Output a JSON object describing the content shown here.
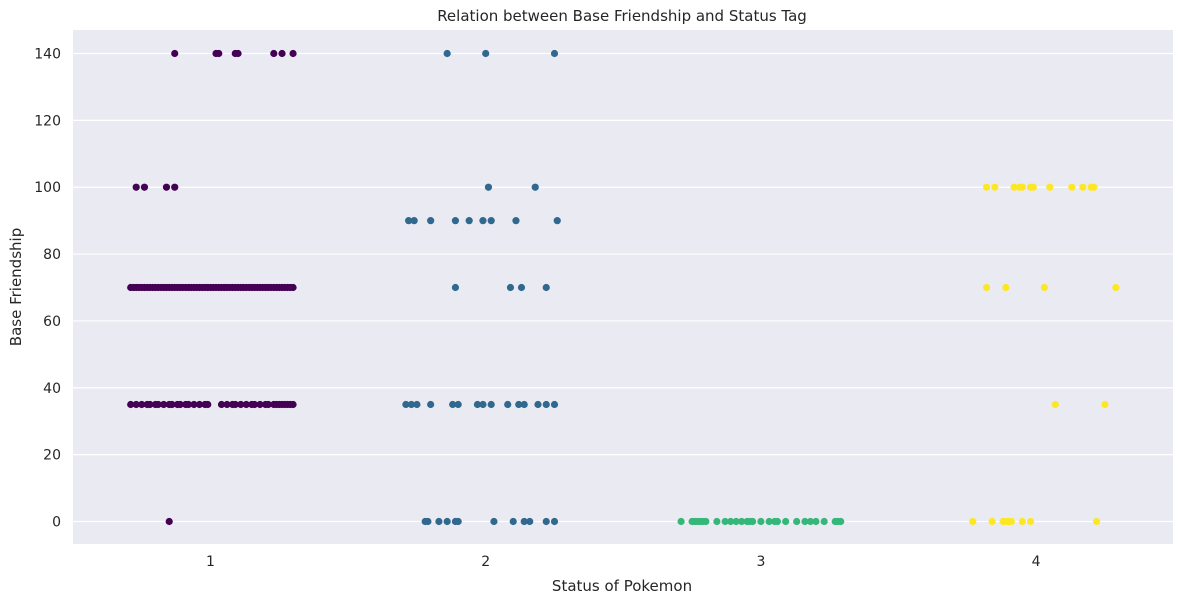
{
  "chart_data": {
    "type": "scatter",
    "title": "Relation between Base Friendship and Status Tag",
    "xlabel": "Status of Pokemon",
    "ylabel": "Base Friendship",
    "categories": [
      "1",
      "2",
      "3",
      "4"
    ],
    "ylim": [
      -7,
      147
    ],
    "yticks": [
      "0",
      "20",
      "40",
      "60",
      "80",
      "100",
      "120",
      "140"
    ],
    "grid": true,
    "colors": [
      "#440154",
      "#31688e",
      "#35b779",
      "#fde725"
    ],
    "series": [
      {
        "category": "1",
        "color": "#440154",
        "points": [
          [
            0.87,
            140
          ],
          [
            1.02,
            140
          ],
          [
            1.03,
            140
          ],
          [
            1.09,
            140
          ],
          [
            1.1,
            140
          ],
          [
            1.23,
            140
          ],
          [
            1.26,
            140
          ],
          [
            1.3,
            140
          ],
          [
            0.73,
            100
          ],
          [
            0.76,
            100
          ],
          [
            0.84,
            100
          ],
          [
            0.87,
            100
          ],
          [
            0.71,
            70
          ],
          [
            0.72,
            70
          ],
          [
            0.73,
            70
          ],
          [
            0.74,
            70
          ],
          [
            0.75,
            70
          ],
          [
            0.76,
            70
          ],
          [
            0.77,
            70
          ],
          [
            0.78,
            70
          ],
          [
            0.79,
            70
          ],
          [
            0.8,
            70
          ],
          [
            0.81,
            70
          ],
          [
            0.82,
            70
          ],
          [
            0.83,
            70
          ],
          [
            0.84,
            70
          ],
          [
            0.85,
            70
          ],
          [
            0.86,
            70
          ],
          [
            0.87,
            70
          ],
          [
            0.88,
            70
          ],
          [
            0.89,
            70
          ],
          [
            0.9,
            70
          ],
          [
            0.91,
            70
          ],
          [
            0.92,
            70
          ],
          [
            0.93,
            70
          ],
          [
            0.94,
            70
          ],
          [
            0.95,
            70
          ],
          [
            0.96,
            70
          ],
          [
            0.97,
            70
          ],
          [
            0.98,
            70
          ],
          [
            0.99,
            70
          ],
          [
            1.0,
            70
          ],
          [
            1.01,
            70
          ],
          [
            1.02,
            70
          ],
          [
            1.03,
            70
          ],
          [
            1.04,
            70
          ],
          [
            1.05,
            70
          ],
          [
            1.06,
            70
          ],
          [
            1.07,
            70
          ],
          [
            1.08,
            70
          ],
          [
            1.09,
            70
          ],
          [
            1.1,
            70
          ],
          [
            1.11,
            70
          ],
          [
            1.12,
            70
          ],
          [
            1.13,
            70
          ],
          [
            1.14,
            70
          ],
          [
            1.15,
            70
          ],
          [
            1.16,
            70
          ],
          [
            1.17,
            70
          ],
          [
            1.18,
            70
          ],
          [
            1.19,
            70
          ],
          [
            1.2,
            70
          ],
          [
            1.21,
            70
          ],
          [
            1.22,
            70
          ],
          [
            1.23,
            70
          ],
          [
            1.24,
            70
          ],
          [
            1.25,
            70
          ],
          [
            1.26,
            70
          ],
          [
            1.27,
            70
          ],
          [
            1.28,
            70
          ],
          [
            1.29,
            70
          ],
          [
            1.3,
            70
          ],
          [
            0.71,
            35
          ],
          [
            0.73,
            35
          ],
          [
            0.75,
            35
          ],
          [
            0.77,
            35
          ],
          [
            0.78,
            35
          ],
          [
            0.8,
            35
          ],
          [
            0.81,
            35
          ],
          [
            0.83,
            35
          ],
          [
            0.85,
            35
          ],
          [
            0.86,
            35
          ],
          [
            0.88,
            35
          ],
          [
            0.89,
            35
          ],
          [
            0.91,
            35
          ],
          [
            0.92,
            35
          ],
          [
            0.94,
            35
          ],
          [
            0.96,
            35
          ],
          [
            0.98,
            35
          ],
          [
            0.99,
            35
          ],
          [
            1.04,
            35
          ],
          [
            1.06,
            35
          ],
          [
            1.08,
            35
          ],
          [
            1.09,
            35
          ],
          [
            1.11,
            35
          ],
          [
            1.13,
            35
          ],
          [
            1.15,
            35
          ],
          [
            1.16,
            35
          ],
          [
            1.18,
            35
          ],
          [
            1.2,
            35
          ],
          [
            1.21,
            35
          ],
          [
            1.23,
            35
          ],
          [
            1.24,
            35
          ],
          [
            1.25,
            35
          ],
          [
            1.26,
            35
          ],
          [
            1.27,
            35
          ],
          [
            1.28,
            35
          ],
          [
            1.29,
            35
          ],
          [
            1.3,
            35
          ],
          [
            0.85,
            0
          ]
        ]
      },
      {
        "category": "2",
        "color": "#31688e",
        "points": [
          [
            1.86,
            140
          ],
          [
            2.0,
            140
          ],
          [
            2.25,
            140
          ],
          [
            2.01,
            100
          ],
          [
            2.18,
            100
          ],
          [
            1.72,
            90
          ],
          [
            1.74,
            90
          ],
          [
            1.8,
            90
          ],
          [
            1.89,
            90
          ],
          [
            1.94,
            90
          ],
          [
            1.99,
            90
          ],
          [
            2.02,
            90
          ],
          [
            2.11,
            90
          ],
          [
            2.26,
            90
          ],
          [
            1.89,
            70
          ],
          [
            2.09,
            70
          ],
          [
            2.13,
            70
          ],
          [
            2.22,
            70
          ],
          [
            1.71,
            35
          ],
          [
            1.73,
            35
          ],
          [
            1.75,
            35
          ],
          [
            1.8,
            35
          ],
          [
            1.88,
            35
          ],
          [
            1.9,
            35
          ],
          [
            1.97,
            35
          ],
          [
            1.99,
            35
          ],
          [
            2.02,
            35
          ],
          [
            2.08,
            35
          ],
          [
            2.12,
            35
          ],
          [
            2.14,
            35
          ],
          [
            2.19,
            35
          ],
          [
            2.22,
            35
          ],
          [
            2.25,
            35
          ],
          [
            1.78,
            0
          ],
          [
            1.79,
            0
          ],
          [
            1.83,
            0
          ],
          [
            1.86,
            0
          ],
          [
            1.89,
            0
          ],
          [
            1.9,
            0
          ],
          [
            2.03,
            0
          ],
          [
            2.1,
            0
          ],
          [
            2.14,
            0
          ],
          [
            2.16,
            0
          ],
          [
            2.22,
            0
          ],
          [
            2.25,
            0
          ]
        ]
      },
      {
        "category": "3",
        "color": "#35b779",
        "points": [
          [
            2.71,
            0
          ],
          [
            2.75,
            0
          ],
          [
            2.76,
            0
          ],
          [
            2.77,
            0
          ],
          [
            2.78,
            0
          ],
          [
            2.79,
            0
          ],
          [
            2.8,
            0
          ],
          [
            2.84,
            0
          ],
          [
            2.87,
            0
          ],
          [
            2.89,
            0
          ],
          [
            2.91,
            0
          ],
          [
            2.93,
            0
          ],
          [
            2.95,
            0
          ],
          [
            2.96,
            0
          ],
          [
            2.97,
            0
          ],
          [
            3.0,
            0
          ],
          [
            3.03,
            0
          ],
          [
            3.05,
            0
          ],
          [
            3.06,
            0
          ],
          [
            3.09,
            0
          ],
          [
            3.13,
            0
          ],
          [
            3.16,
            0
          ],
          [
            3.18,
            0
          ],
          [
            3.2,
            0
          ],
          [
            3.23,
            0
          ],
          [
            3.27,
            0
          ],
          [
            3.28,
            0
          ],
          [
            3.29,
            0
          ]
        ]
      },
      {
        "category": "4",
        "color": "#fde725",
        "points": [
          [
            3.82,
            100
          ],
          [
            3.85,
            100
          ],
          [
            3.92,
            100
          ],
          [
            3.94,
            100
          ],
          [
            3.95,
            100
          ],
          [
            3.98,
            100
          ],
          [
            3.99,
            100
          ],
          [
            4.05,
            100
          ],
          [
            4.13,
            100
          ],
          [
            4.17,
            100
          ],
          [
            4.2,
            100
          ],
          [
            4.21,
            100
          ],
          [
            3.82,
            70
          ],
          [
            3.89,
            70
          ],
          [
            4.03,
            70
          ],
          [
            4.29,
            70
          ],
          [
            4.07,
            35
          ],
          [
            4.25,
            35
          ],
          [
            3.77,
            0
          ],
          [
            3.84,
            0
          ],
          [
            3.88,
            0
          ],
          [
            3.89,
            0
          ],
          [
            3.9,
            0
          ],
          [
            3.91,
            0
          ],
          [
            3.95,
            0
          ],
          [
            3.98,
            0
          ],
          [
            4.22,
            0
          ]
        ]
      }
    ]
  }
}
